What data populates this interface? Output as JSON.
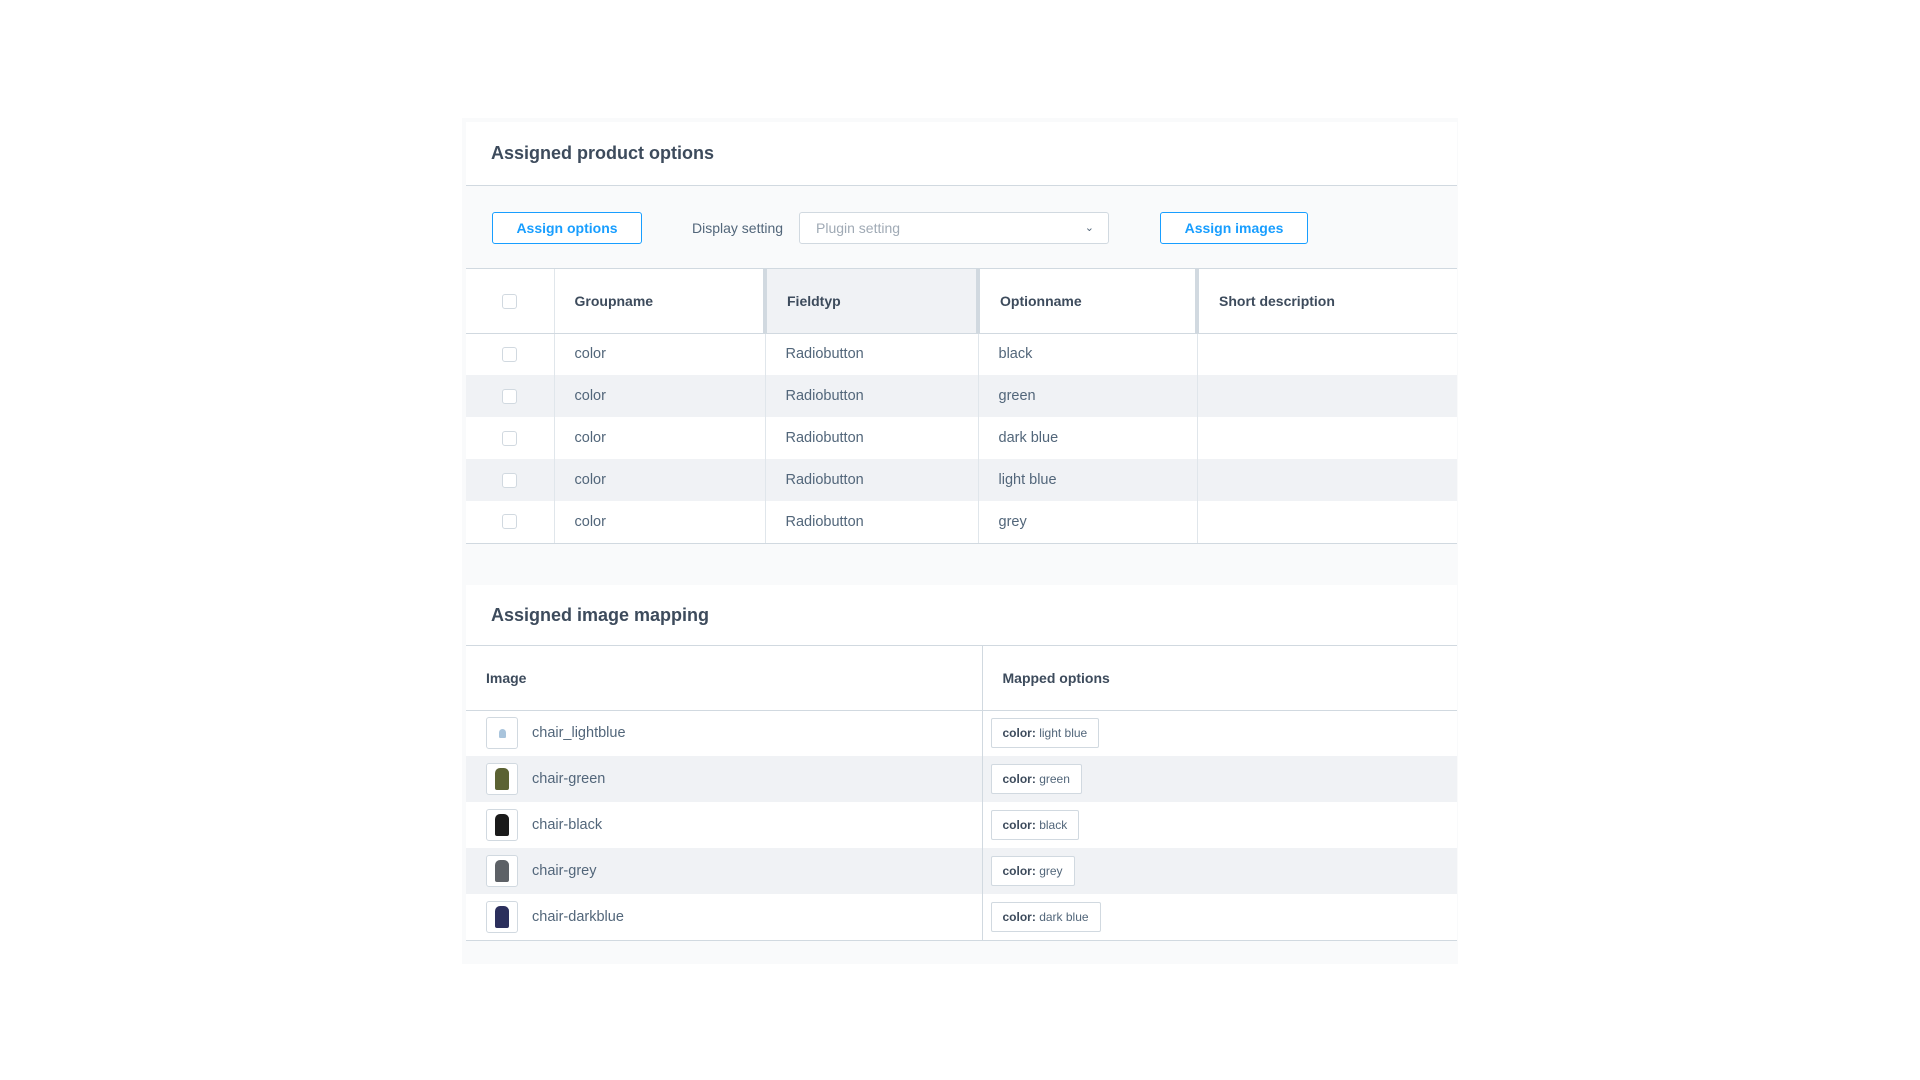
{
  "options_card": {
    "title": "Assigned product options",
    "assign_options_label": "Assign options",
    "display_setting_label": "Display setting",
    "display_setting_value": "Plugin setting",
    "assign_images_label": "Assign images",
    "columns": [
      "Groupname",
      "Fieldtyp",
      "Optionname",
      "Short description"
    ],
    "rows": [
      {
        "group": "color",
        "type": "Radiobutton",
        "option": "black",
        "desc": ""
      },
      {
        "group": "color",
        "type": "Radiobutton",
        "option": "green",
        "desc": ""
      },
      {
        "group": "color",
        "type": "Radiobutton",
        "option": "dark blue",
        "desc": ""
      },
      {
        "group": "color",
        "type": "Radiobutton",
        "option": "light blue",
        "desc": ""
      },
      {
        "group": "color",
        "type": "Radiobutton",
        "option": "grey",
        "desc": ""
      }
    ]
  },
  "mapping_card": {
    "title": "Assigned image mapping",
    "columns": [
      "Image",
      "Mapped options"
    ],
    "rows": [
      {
        "image": "chair_lightblue",
        "color": "#a9c4dc",
        "key": "color:",
        "value": "light blue"
      },
      {
        "image": "chair-green",
        "color": "#5b6233",
        "key": "color:",
        "value": "green"
      },
      {
        "image": "chair-black",
        "color": "#1a1a1a",
        "key": "color:",
        "value": "black"
      },
      {
        "image": "chair-grey",
        "color": "#5d6166",
        "key": "color:",
        "value": "grey"
      },
      {
        "image": "chair-darkblue",
        "color": "#2b2f5c",
        "key": "color:",
        "value": "dark blue"
      }
    ]
  },
  "accent": "#189eff"
}
